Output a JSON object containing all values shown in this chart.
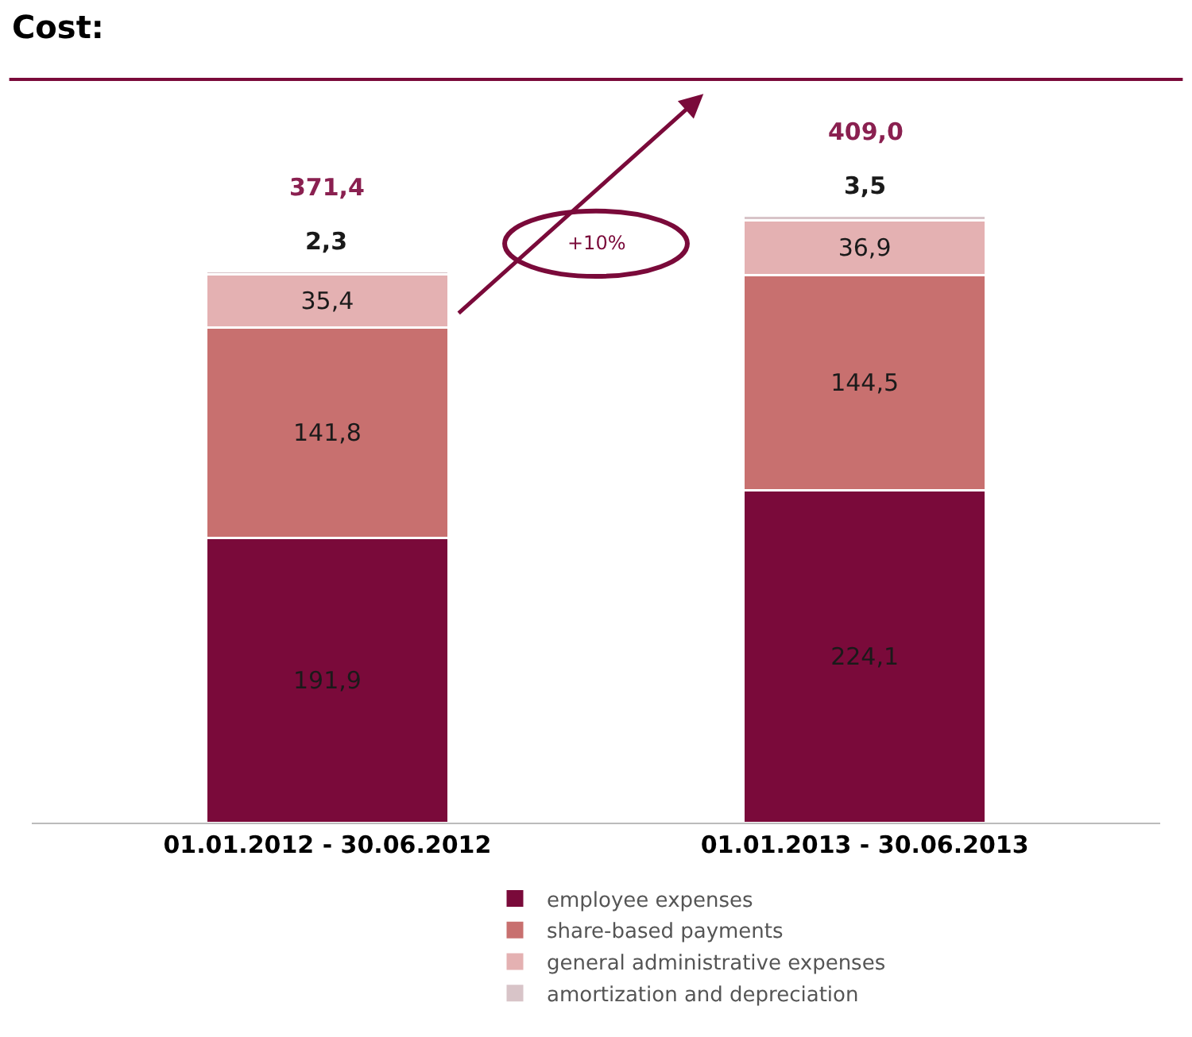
{
  "chart_data": {
    "type": "bar",
    "title": "Cost:",
    "stacked": true,
    "legend": "bottom",
    "categories": [
      "01.01.2012 - 30.06.2012",
      "01.01.2013 - 30.06.2013"
    ],
    "series": [
      {
        "name": "employee expenses",
        "color": "#7a0a3a",
        "values": [
          191.9,
          224.1
        ],
        "value_labels": [
          "191,9",
          "224,1"
        ]
      },
      {
        "name": "share-based payments",
        "color": "#c8706f",
        "values": [
          141.8,
          144.5
        ],
        "value_labels": [
          "141,8",
          "144,5"
        ]
      },
      {
        "name": "general administrative expenses",
        "color": "#e4b1b2",
        "values": [
          35.4,
          36.9
        ],
        "value_labels": [
          "35,4",
          "36,9"
        ]
      },
      {
        "name": "amortization and depreciation",
        "color": "#d8c4c8",
        "values": [
          2.3,
          3.5
        ],
        "value_labels": [
          "2,3",
          "3,5"
        ]
      }
    ],
    "totals": [
      "371,4",
      "409,0"
    ],
    "annotations": [
      "+10%"
    ]
  }
}
